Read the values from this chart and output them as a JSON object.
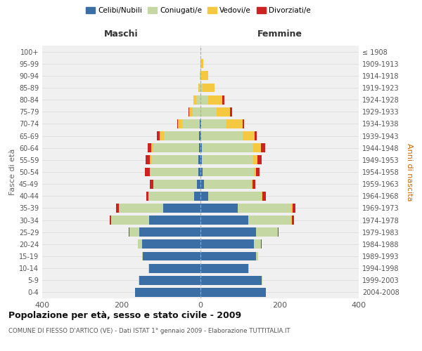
{
  "age_groups": [
    "0-4",
    "5-9",
    "10-14",
    "15-19",
    "20-24",
    "25-29",
    "30-34",
    "35-39",
    "40-44",
    "45-49",
    "50-54",
    "55-59",
    "60-64",
    "65-69",
    "70-74",
    "75-79",
    "80-84",
    "85-89",
    "90-94",
    "95-99",
    "100+"
  ],
  "birth_years": [
    "2004-2008",
    "1999-2003",
    "1994-1998",
    "1989-1993",
    "1984-1988",
    "1979-1983",
    "1974-1978",
    "1969-1973",
    "1964-1968",
    "1959-1963",
    "1954-1958",
    "1949-1953",
    "1944-1948",
    "1939-1943",
    "1934-1938",
    "1929-1933",
    "1924-1928",
    "1919-1923",
    "1914-1918",
    "1909-1913",
    "≤ 1908"
  ],
  "maschi": {
    "celibi": [
      165,
      155,
      130,
      145,
      148,
      155,
      130,
      95,
      16,
      9,
      6,
      5,
      4,
      3,
      2,
      0,
      0,
      0,
      0,
      0,
      0
    ],
    "coniugati": [
      1,
      2,
      2,
      3,
      10,
      25,
      95,
      110,
      115,
      110,
      120,
      120,
      115,
      90,
      45,
      20,
      10,
      2,
      1,
      0,
      0
    ],
    "vedovi": [
      0,
      0,
      0,
      0,
      0,
      0,
      0,
      1,
      1,
      1,
      2,
      3,
      5,
      10,
      10,
      8,
      8,
      3,
      0,
      0,
      0
    ],
    "divorziati": [
      0,
      0,
      0,
      0,
      1,
      2,
      5,
      8,
      5,
      8,
      12,
      10,
      10,
      8,
      2,
      2,
      0,
      0,
      0,
      0,
      0
    ]
  },
  "femmine": {
    "nubili": [
      165,
      155,
      120,
      140,
      135,
      140,
      120,
      95,
      20,
      8,
      5,
      4,
      3,
      2,
      1,
      0,
      0,
      0,
      0,
      0,
      0
    ],
    "coniugate": [
      1,
      2,
      3,
      5,
      18,
      55,
      110,
      135,
      135,
      120,
      130,
      130,
      130,
      105,
      65,
      40,
      20,
      5,
      2,
      2,
      0
    ],
    "vedove": [
      0,
      0,
      0,
      0,
      0,
      1,
      1,
      2,
      2,
      3,
      5,
      10,
      20,
      30,
      40,
      35,
      35,
      30,
      18,
      5,
      0
    ],
    "divorziate": [
      0,
      0,
      0,
      0,
      1,
      2,
      5,
      8,
      8,
      8,
      10,
      10,
      10,
      5,
      5,
      5,
      5,
      0,
      0,
      0,
      0
    ]
  },
  "colors": {
    "celibi": "#3a6ea5",
    "coniugati": "#c5d8a4",
    "vedovi": "#f5c842",
    "divorziati": "#cc2222"
  },
  "legend_labels": [
    "Celibi/Nubili",
    "Coniugati/e",
    "Vedovi/e",
    "Divorziati/e"
  ],
  "title": "Popolazione per età, sesso e stato civile - 2009",
  "subtitle": "COMUNE DI FIESSO D'ARTICO (VE) - Dati ISTAT 1° gennaio 2009 - Elaborazione TUTTITALIA.IT",
  "xlabel_left": "Maschi",
  "xlabel_right": "Femmine",
  "ylabel_left": "Fasce di età",
  "ylabel_right": "Anni di nascita",
  "xlim": 400,
  "bg_color": "#ffffff",
  "plot_bg": "#f0f0f0",
  "grid_color": "#dddddd"
}
